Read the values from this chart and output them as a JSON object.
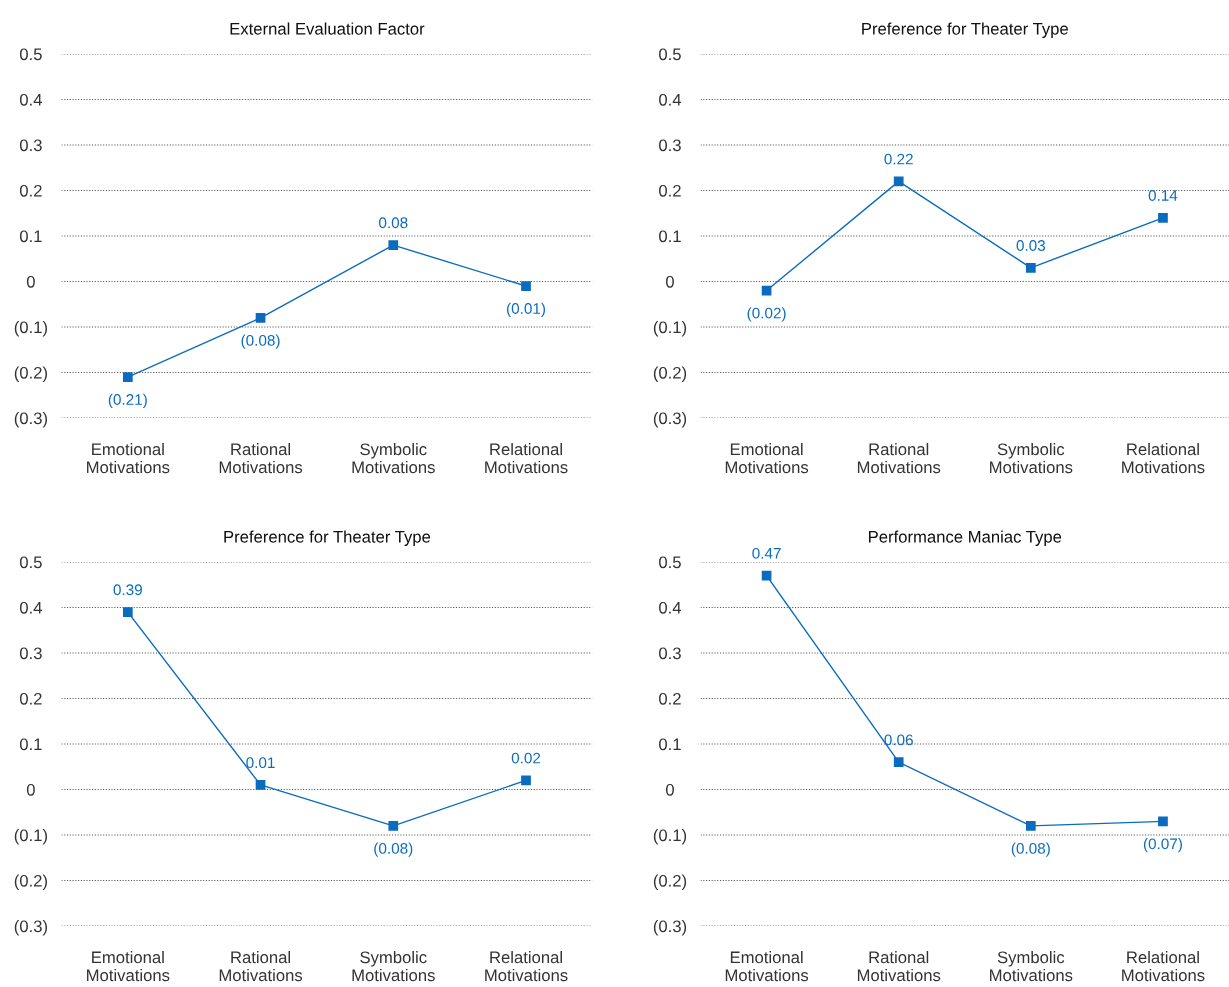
{
  "chart_data": [
    {
      "type": "line",
      "title": "External Evaluation Factor",
      "categories": [
        "Emotional\nMotivations",
        "Rational\nMotivations",
        "Symbolic\nMotivations",
        "Relational\nMotivations"
      ],
      "series": [
        {
          "color": "#0b6cbf",
          "values": [
            -0.21,
            -0.08,
            0.08,
            -0.01
          ],
          "value_labels": [
            "(0.21)",
            "(0.08)",
            "0.08",
            "(0.01)"
          ]
        }
      ],
      "ylim": [
        -0.3,
        0.5
      ],
      "yticks": [
        {
          "value": -0.3,
          "label": "(0.3)"
        },
        {
          "value": -0.2,
          "label": "(0.2)"
        },
        {
          "value": -0.1,
          "label": "(0.1)"
        },
        0,
        0.1,
        0.2,
        0.3,
        0.4,
        0.5
      ],
      "grid": "y",
      "marker": "square",
      "line_style": "solid"
    },
    {
      "type": "line",
      "title": "Preference for Theater Type",
      "categories": [
        "Emotional\nMotivations",
        "Rational\nMotivations",
        "Symbolic\nMotivations",
        "Relational\nMotivations"
      ],
      "series": [
        {
          "color": "#0b6cbf",
          "values": [
            -0.02,
            0.22,
            0.03,
            0.14
          ],
          "value_labels": [
            "(0.02)",
            "0.22",
            "0.03",
            "0.14"
          ]
        }
      ],
      "ylim": [
        -0.3,
        0.5
      ],
      "yticks": [
        {
          "value": -0.3,
          "label": "(0.3)"
        },
        {
          "value": -0.2,
          "label": "(0.2)"
        },
        {
          "value": -0.1,
          "label": "(0.1)"
        },
        0,
        0.1,
        0.2,
        0.3,
        0.4,
        0.5
      ],
      "grid": "y",
      "marker": "square",
      "line_style": "solid"
    },
    {
      "type": "line",
      "title": "Preference for Theater Type",
      "categories": [
        "Emotional\nMotivations",
        "Rational\nMotivations",
        "Symbolic\nMotivations",
        "Relational\nMotivations"
      ],
      "series": [
        {
          "color": "#0b6cbf",
          "values": [
            0.39,
            0.01,
            -0.08,
            0.02
          ],
          "value_labels": [
            "0.39",
            "0.01",
            "(0.08)",
            "0.02"
          ]
        }
      ],
      "ylim": [
        -0.3,
        0.5
      ],
      "yticks": [
        {
          "value": -0.3,
          "label": "(0.3)"
        },
        {
          "value": -0.2,
          "label": "(0.2)"
        },
        {
          "value": -0.1,
          "label": "(0.1)"
        },
        0,
        0.1,
        0.2,
        0.3,
        0.4,
        0.5
      ],
      "grid": "y",
      "marker": "square",
      "line_style": "solid"
    },
    {
      "type": "line",
      "title": "Performance Maniac Type",
      "categories": [
        "Emotional\nMotivations",
        "Rational\nMotivations",
        "Symbolic\nMotivations",
        "Relational\nMotivations"
      ],
      "series": [
        {
          "color": "#0b6cbf",
          "values": [
            0.47,
            0.06,
            -0.08,
            -0.07
          ],
          "value_labels": [
            "0.47",
            "0.06",
            "(0.08)",
            "(0.07)"
          ]
        }
      ],
      "ylim": [
        -0.3,
        0.5
      ],
      "yticks": [
        {
          "value": -0.3,
          "label": "(0.3)"
        },
        {
          "value": -0.2,
          "label": "(0.2)"
        },
        {
          "value": -0.1,
          "label": "(0.1)"
        },
        0,
        0.1,
        0.2,
        0.3,
        0.4,
        0.5
      ],
      "grid": "y",
      "marker": "square",
      "line_style": "solid"
    }
  ]
}
